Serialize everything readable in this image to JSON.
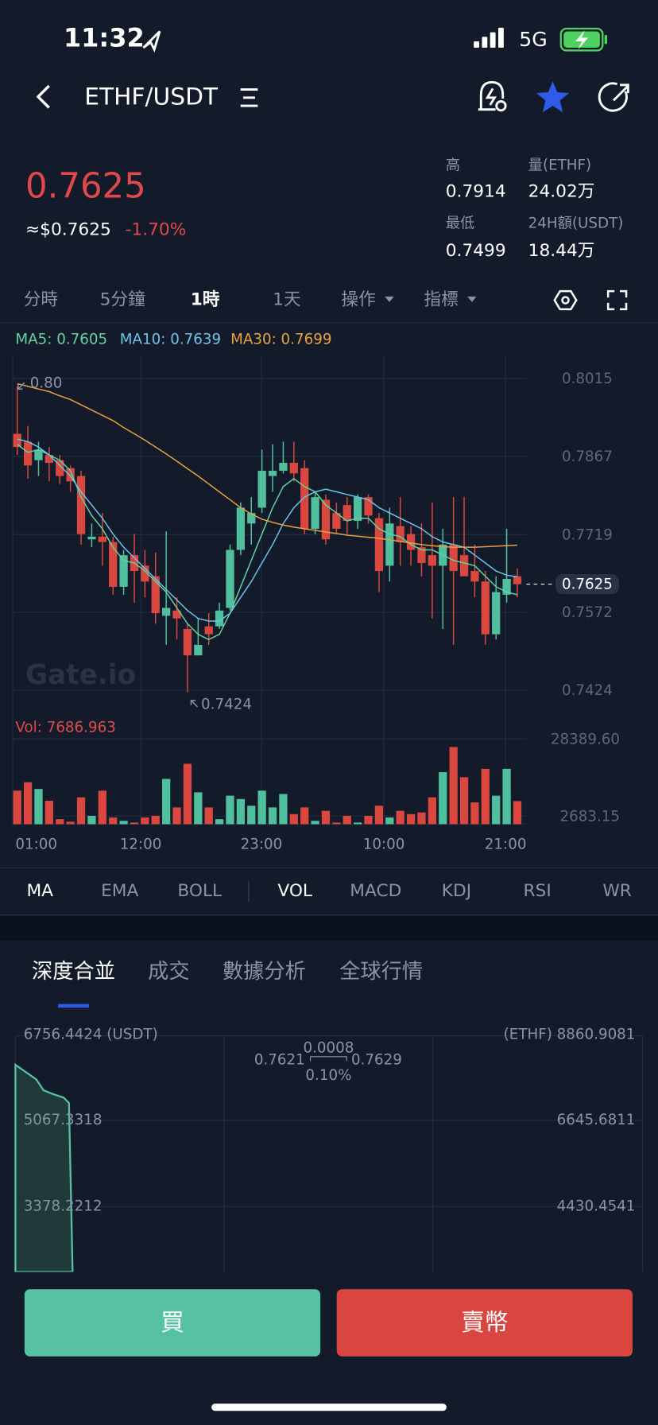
{
  "status": {
    "time": "11:32",
    "network": "5G"
  },
  "header": {
    "pair": "ETHF/USDT"
  },
  "price": {
    "last": "0.7625",
    "usd": "≈$0.7625",
    "change": "-1.70%"
  },
  "stats": [
    {
      "label": "高",
      "value": "0.7914"
    },
    {
      "label": "量(ETHF)",
      "value": "24.02万"
    },
    {
      "label": "最低",
      "value": "0.7499"
    },
    {
      "label": "24H額(USDT)",
      "value": "18.44万"
    }
  ],
  "intervals": [
    "分時",
    "5分鐘",
    "1時",
    "1天",
    "操作",
    "指標"
  ],
  "indicators": [
    "MA",
    "EMA",
    "BOLL",
    "VOL",
    "MACD",
    "KDJ",
    "RSI",
    "WR"
  ],
  "tabs": [
    "深度合並",
    "成交",
    "數據分析",
    "全球行情"
  ],
  "depth": {
    "left_labels": [
      "6756.4424 (USDT)",
      "5067.3318",
      "3378.2212"
    ],
    "right_labels": [
      "(ETHF) 8860.9081",
      "6645.6811",
      "4430.4541"
    ],
    "spread": "0.0008",
    "bid": "0.7621",
    "ask": "0.7629",
    "spread_pct": "0.10%"
  },
  "buttons": {
    "buy": "買",
    "sell": "賣幣"
  },
  "chart_data": [
    {
      "type": "candlestick",
      "watermark": "Gate.io",
      "up_color": "#4fbf9d",
      "down_color": "#d9473f",
      "ylim": [
        0.738,
        0.806
      ],
      "yticks": [
        0.8015,
        0.7867,
        0.7719,
        0.7572,
        0.7424
      ],
      "high_label": "0.80",
      "low_label": "0.7424",
      "last_label": "0.7625",
      "open": [
        0.791,
        0.7895,
        0.786,
        0.787,
        0.786,
        0.7845,
        0.783,
        0.771,
        0.7715,
        0.7705,
        0.762,
        0.768,
        0.766,
        0.764,
        0.7565,
        0.7575,
        0.754,
        0.749,
        0.7545,
        0.7545,
        0.758,
        0.769,
        0.774,
        0.777,
        0.783,
        0.784,
        0.7855,
        0.7845,
        0.773,
        0.7785,
        0.776,
        0.7775,
        0.7745,
        0.779,
        0.775,
        0.766,
        0.7735,
        0.772,
        0.7695,
        0.768,
        0.766,
        0.77,
        0.768,
        0.765,
        0.763,
        0.753,
        0.7605,
        0.764
      ],
      "high": [
        0.8,
        0.7925,
        0.7895,
        0.7885,
        0.787,
        0.785,
        0.784,
        0.774,
        0.776,
        0.7715,
        0.769,
        0.772,
        0.769,
        0.7685,
        0.7725,
        0.76,
        0.755,
        0.756,
        0.757,
        0.759,
        0.77,
        0.778,
        0.779,
        0.788,
        0.789,
        0.7895,
        0.7895,
        0.786,
        0.78,
        0.7795,
        0.778,
        0.779,
        0.7795,
        0.7795,
        0.776,
        0.777,
        0.779,
        0.7735,
        0.774,
        0.778,
        0.773,
        0.779,
        0.779,
        0.77,
        0.765,
        0.764,
        0.773,
        0.7655
      ],
      "low": [
        0.787,
        0.7825,
        0.783,
        0.782,
        0.7815,
        0.78,
        0.77,
        0.7695,
        0.766,
        0.7605,
        0.7605,
        0.759,
        0.76,
        0.755,
        0.751,
        0.752,
        0.742,
        0.749,
        0.751,
        0.754,
        0.7575,
        0.768,
        0.77,
        0.776,
        0.78,
        0.7835,
        0.782,
        0.772,
        0.772,
        0.77,
        0.772,
        0.772,
        0.773,
        0.774,
        0.761,
        0.763,
        0.766,
        0.766,
        0.764,
        0.756,
        0.754,
        0.751,
        0.764,
        0.76,
        0.751,
        0.752,
        0.759,
        0.76
      ],
      "close": [
        0.7885,
        0.785,
        0.788,
        0.7855,
        0.783,
        0.782,
        0.772,
        0.7715,
        0.7705,
        0.762,
        0.768,
        0.765,
        0.763,
        0.757,
        0.758,
        0.756,
        0.749,
        0.751,
        0.753,
        0.7575,
        0.769,
        0.777,
        0.776,
        0.784,
        0.784,
        0.7855,
        0.7835,
        0.773,
        0.779,
        0.771,
        0.773,
        0.7745,
        0.779,
        0.7755,
        0.765,
        0.774,
        0.7705,
        0.769,
        0.7665,
        0.766,
        0.77,
        0.765,
        0.764,
        0.763,
        0.753,
        0.761,
        0.7635,
        0.7625
      ],
      "series": [
        {
          "name": "MA5: 0.7605",
          "color": "#5fd39f",
          "values": [
            0.789,
            0.7875,
            0.788,
            0.787,
            0.786,
            0.784,
            0.779,
            0.7755,
            0.773,
            0.7695,
            0.767,
            0.7665,
            0.765,
            0.763,
            0.761,
            0.758,
            0.755,
            0.753,
            0.752,
            0.753,
            0.757,
            0.762,
            0.767,
            0.772,
            0.777,
            0.781,
            0.7825,
            0.781,
            0.78,
            0.7775,
            0.776,
            0.7745,
            0.775,
            0.775,
            0.773,
            0.772,
            0.7715,
            0.77,
            0.769,
            0.769,
            0.768,
            0.767,
            0.7665,
            0.766,
            0.764,
            0.762,
            0.761,
            0.7605
          ]
        },
        {
          "name": "MA10: 0.7639",
          "color": "#6cc3ea",
          "values": [
            0.79,
            0.7895,
            0.7885,
            0.787,
            0.785,
            0.783,
            0.78,
            0.7775,
            0.775,
            0.772,
            0.7695,
            0.7675,
            0.7655,
            0.7635,
            0.7615,
            0.7595,
            0.7575,
            0.756,
            0.7555,
            0.7555,
            0.757,
            0.76,
            0.763,
            0.7665,
            0.77,
            0.774,
            0.777,
            0.779,
            0.78,
            0.7805,
            0.78,
            0.7795,
            0.779,
            0.7785,
            0.777,
            0.776,
            0.775,
            0.774,
            0.773,
            0.7715,
            0.7705,
            0.77,
            0.7695,
            0.768,
            0.7665,
            0.765,
            0.7642,
            0.7639
          ]
        },
        {
          "name": "MA30: 0.7699",
          "color": "#e8a13c",
          "values": [
            0.8005,
            0.8,
            0.7995,
            0.799,
            0.7982,
            0.7975,
            0.7965,
            0.7955,
            0.7945,
            0.7935,
            0.7922,
            0.791,
            0.7898,
            0.7885,
            0.7872,
            0.7858,
            0.7844,
            0.783,
            0.7815,
            0.78,
            0.7785,
            0.777,
            0.7758,
            0.7748,
            0.7742,
            0.7737,
            0.7733,
            0.773,
            0.7727,
            0.7724,
            0.7721,
            0.7718,
            0.7716,
            0.7714,
            0.7712,
            0.7709,
            0.7706,
            0.7703,
            0.77,
            0.7698,
            0.7696,
            0.7695,
            0.7695,
            0.7695,
            0.7696,
            0.7697,
            0.7698,
            0.7699
          ]
        }
      ]
    },
    {
      "type": "bar",
      "title": "Vol: 7686.963",
      "ylim": [
        0,
        28389.6
      ],
      "yticks": [
        {
          "value": 28389.6,
          "label": "28389.60"
        },
        2683.15
      ],
      "time_labels": [
        "01:00",
        "12:00",
        "23:00",
        "10:00",
        "21:00"
      ],
      "values": [
        11160,
        13950,
        11720,
        7810,
        1670,
        840,
        8930,
        2790,
        11160,
        2230,
        1120,
        560,
        2230,
        2790,
        15070,
        5580,
        20090,
        10600,
        5580,
        1670,
        9490,
        8370,
        6140,
        11160,
        5580,
        10040,
        3350,
        5580,
        1120,
        4460,
        560,
        2790,
        560,
        2790,
        6140,
        2230,
        4460,
        3350,
        3910,
        8930,
        17300,
        25670,
        15620,
        7250,
        18410,
        9490,
        18410,
        7686.963
      ]
    }
  ]
}
